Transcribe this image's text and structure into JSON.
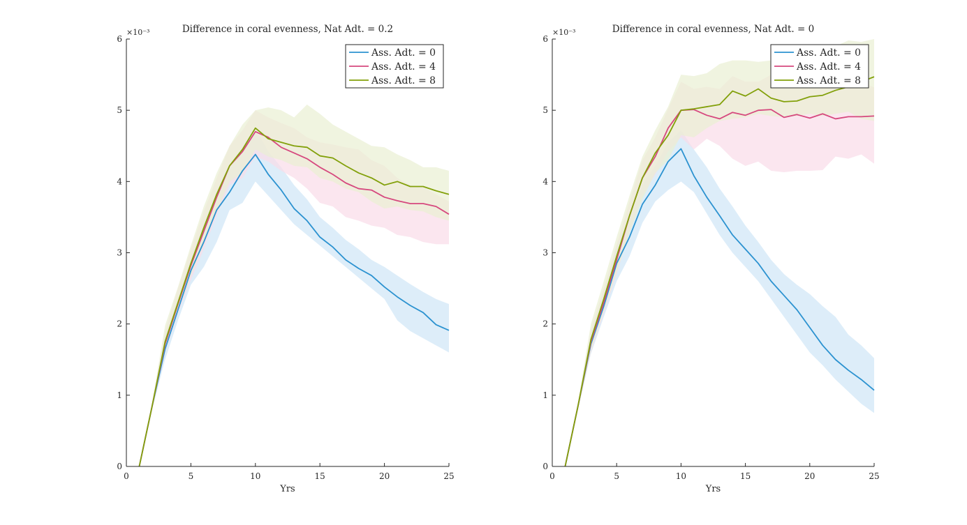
{
  "chart_data": [
    {
      "type": "line",
      "title": "Difference in coral evenness, Nat Adt. = 0.2",
      "xlabel": "Yrs",
      "ylabel": "",
      "y_multiplier": "×10⁻³",
      "xlim": [
        0,
        25
      ],
      "ylim": [
        0,
        6
      ],
      "xticks": [
        0,
        5,
        10,
        15,
        20,
        25
      ],
      "yticks": [
        0,
        1,
        2,
        3,
        4,
        5,
        6
      ],
      "grid": false,
      "legend_position": "top-right",
      "x": [
        1,
        2,
        3,
        4,
        5,
        6,
        7,
        8,
        9,
        10,
        11,
        12,
        13,
        14,
        15,
        16,
        17,
        18,
        19,
        20,
        21,
        22,
        23,
        24,
        25
      ],
      "series": [
        {
          "name": "Ass. Adt. = 0",
          "color": "#2b92d0",
          "band_color": "#cfe5f7",
          "values": [
            0,
            0.85,
            1.65,
            2.2,
            2.75,
            3.15,
            3.6,
            3.85,
            4.15,
            4.38,
            4.1,
            3.88,
            3.62,
            3.45,
            3.22,
            3.08,
            2.9,
            2.78,
            2.68,
            2.52,
            2.38,
            2.26,
            2.16,
            1.99,
            1.91
          ],
          "lower": [
            0,
            0.8,
            1.5,
            2.05,
            2.55,
            2.8,
            3.15,
            3.6,
            3.7,
            4.0,
            3.8,
            3.6,
            3.4,
            3.25,
            3.1,
            2.95,
            2.8,
            2.65,
            2.5,
            2.35,
            2.05,
            1.9,
            1.8,
            1.7,
            1.6
          ],
          "upper": [
            0,
            0.9,
            1.82,
            2.35,
            2.92,
            3.38,
            3.85,
            4.18,
            4.45,
            4.75,
            4.42,
            4.2,
            3.95,
            3.75,
            3.5,
            3.35,
            3.18,
            3.05,
            2.9,
            2.8,
            2.68,
            2.56,
            2.45,
            2.35,
            2.28
          ]
        },
        {
          "name": "Ass. Adt. = 4",
          "color": "#d6487e",
          "band_color": "#f9dbe8",
          "values": [
            0,
            0.85,
            1.72,
            2.28,
            2.82,
            3.3,
            3.78,
            4.22,
            4.42,
            4.7,
            4.62,
            4.48,
            4.4,
            4.32,
            4.2,
            4.1,
            3.98,
            3.9,
            3.88,
            3.78,
            3.73,
            3.69,
            3.69,
            3.65,
            3.54
          ],
          "lower": [
            0,
            0.8,
            1.6,
            2.15,
            2.62,
            3.05,
            3.52,
            3.95,
            4.05,
            4.35,
            4.28,
            4.15,
            4.05,
            3.9,
            3.7,
            3.65,
            3.5,
            3.45,
            3.38,
            3.35,
            3.25,
            3.22,
            3.15,
            3.12,
            3.12
          ],
          "upper": [
            0,
            0.9,
            1.9,
            2.5,
            3.05,
            3.58,
            4.05,
            4.5,
            4.72,
            5.0,
            4.9,
            4.82,
            4.75,
            4.62,
            4.55,
            4.52,
            4.48,
            4.45,
            4.3,
            4.22,
            4.05,
            3.95,
            3.92,
            3.82,
            3.72
          ]
        },
        {
          "name": "Ass. Adt. = 8",
          "color": "#82a00a",
          "band_color": "#e9efd3",
          "values": [
            0,
            0.85,
            1.75,
            2.3,
            2.85,
            3.35,
            3.82,
            4.22,
            4.45,
            4.75,
            4.6,
            4.55,
            4.5,
            4.48,
            4.36,
            4.33,
            4.22,
            4.12,
            4.05,
            3.95,
            4.0,
            3.93,
            3.93,
            3.87,
            3.82
          ],
          "lower": [
            0,
            0.8,
            1.62,
            2.18,
            2.68,
            3.12,
            3.58,
            4.0,
            4.12,
            4.45,
            4.35,
            4.3,
            4.22,
            4.2,
            4.05,
            4.0,
            3.9,
            3.85,
            3.72,
            3.62,
            3.65,
            3.6,
            3.58,
            3.5,
            3.45
          ],
          "upper": [
            0,
            0.9,
            1.98,
            2.52,
            3.1,
            3.65,
            4.12,
            4.5,
            4.8,
            5.0,
            5.04,
            5.0,
            4.9,
            5.08,
            4.95,
            4.8,
            4.7,
            4.6,
            4.5,
            4.48,
            4.38,
            4.3,
            4.2,
            4.2,
            4.15
          ]
        }
      ]
    },
    {
      "type": "line",
      "title": "Difference in coral evenness, Nat Adt. = 0",
      "xlabel": "Yrs",
      "ylabel": "",
      "y_multiplier": "×10⁻³",
      "xlim": [
        0,
        25
      ],
      "ylim": [
        0,
        6
      ],
      "xticks": [
        0,
        5,
        10,
        15,
        20,
        25
      ],
      "yticks": [
        0,
        1,
        2,
        3,
        4,
        5,
        6
      ],
      "grid": false,
      "legend_position": "top-right",
      "x": [
        1,
        2,
        3,
        4,
        5,
        6,
        7,
        8,
        9,
        10,
        11,
        12,
        13,
        14,
        15,
        16,
        17,
        18,
        19,
        20,
        21,
        22,
        23,
        24,
        25
      ],
      "series": [
        {
          "name": "Ass. Adt. = 0",
          "color": "#2b92d0",
          "band_color": "#cfe5f7",
          "values": [
            0,
            0.85,
            1.72,
            2.25,
            2.85,
            3.22,
            3.68,
            3.95,
            4.28,
            4.46,
            4.08,
            3.78,
            3.52,
            3.25,
            3.05,
            2.85,
            2.6,
            2.4,
            2.2,
            1.95,
            1.7,
            1.5,
            1.35,
            1.22,
            1.07
          ],
          "lower": [
            0,
            0.8,
            1.58,
            2.1,
            2.6,
            2.95,
            3.42,
            3.72,
            3.88,
            4.0,
            3.85,
            3.55,
            3.25,
            3.0,
            2.8,
            2.6,
            2.35,
            2.1,
            1.85,
            1.6,
            1.42,
            1.22,
            1.05,
            0.88,
            0.75
          ],
          "upper": [
            0,
            0.9,
            1.88,
            2.42,
            3.1,
            3.5,
            3.95,
            4.22,
            4.55,
            4.72,
            4.45,
            4.2,
            3.9,
            3.65,
            3.38,
            3.15,
            2.9,
            2.7,
            2.55,
            2.42,
            2.25,
            2.1,
            1.85,
            1.7,
            1.52
          ]
        },
        {
          "name": "Ass. Adt. = 4",
          "color": "#d6487e",
          "band_color": "#f9dbe8",
          "values": [
            0,
            0.85,
            1.75,
            2.3,
            2.9,
            3.52,
            4.05,
            4.35,
            4.75,
            5.0,
            5.01,
            4.93,
            4.88,
            4.97,
            4.93,
            5.0,
            5.01,
            4.9,
            4.94,
            4.89,
            4.95,
            4.88,
            4.91,
            4.91,
            4.92
          ],
          "lower": [
            0,
            0.8,
            1.6,
            2.15,
            2.7,
            3.3,
            3.8,
            4.1,
            4.42,
            4.62,
            4.45,
            4.6,
            4.5,
            4.32,
            4.22,
            4.28,
            4.15,
            4.13,
            4.15,
            4.15,
            4.16,
            4.35,
            4.32,
            4.38,
            4.25
          ],
          "upper": [
            0,
            0.9,
            1.92,
            2.5,
            3.12,
            3.72,
            4.3,
            4.62,
            5.02,
            5.4,
            5.3,
            5.33,
            5.3,
            5.48,
            5.4,
            5.4,
            5.5,
            5.35,
            5.42,
            5.38,
            5.32,
            5.3,
            5.35,
            5.4,
            5.32
          ]
        },
        {
          "name": "Ass. Adt. = 8",
          "color": "#82a00a",
          "band_color": "#e9efd3",
          "values": [
            0,
            0.85,
            1.78,
            2.35,
            2.95,
            3.52,
            4.05,
            4.4,
            4.65,
            5.0,
            5.02,
            5.05,
            5.08,
            5.27,
            5.2,
            5.3,
            5.17,
            5.12,
            5.13,
            5.19,
            5.21,
            5.28,
            5.33,
            5.4,
            5.47
          ],
          "lower": [
            0,
            0.8,
            1.62,
            2.18,
            2.72,
            3.28,
            3.75,
            4.12,
            4.3,
            4.65,
            4.62,
            4.75,
            4.85,
            4.88,
            4.9,
            4.95,
            4.92,
            4.9,
            4.92,
            4.95,
            4.92,
            4.95,
            4.98,
            4.88,
            4.85
          ],
          "upper": [
            0,
            0.9,
            2.0,
            2.6,
            3.22,
            3.8,
            4.35,
            4.72,
            5.05,
            5.5,
            5.48,
            5.52,
            5.65,
            5.7,
            5.7,
            5.68,
            5.7,
            5.72,
            5.8,
            5.85,
            5.82,
            5.9,
            5.98,
            5.96,
            6.0
          ]
        }
      ]
    }
  ]
}
